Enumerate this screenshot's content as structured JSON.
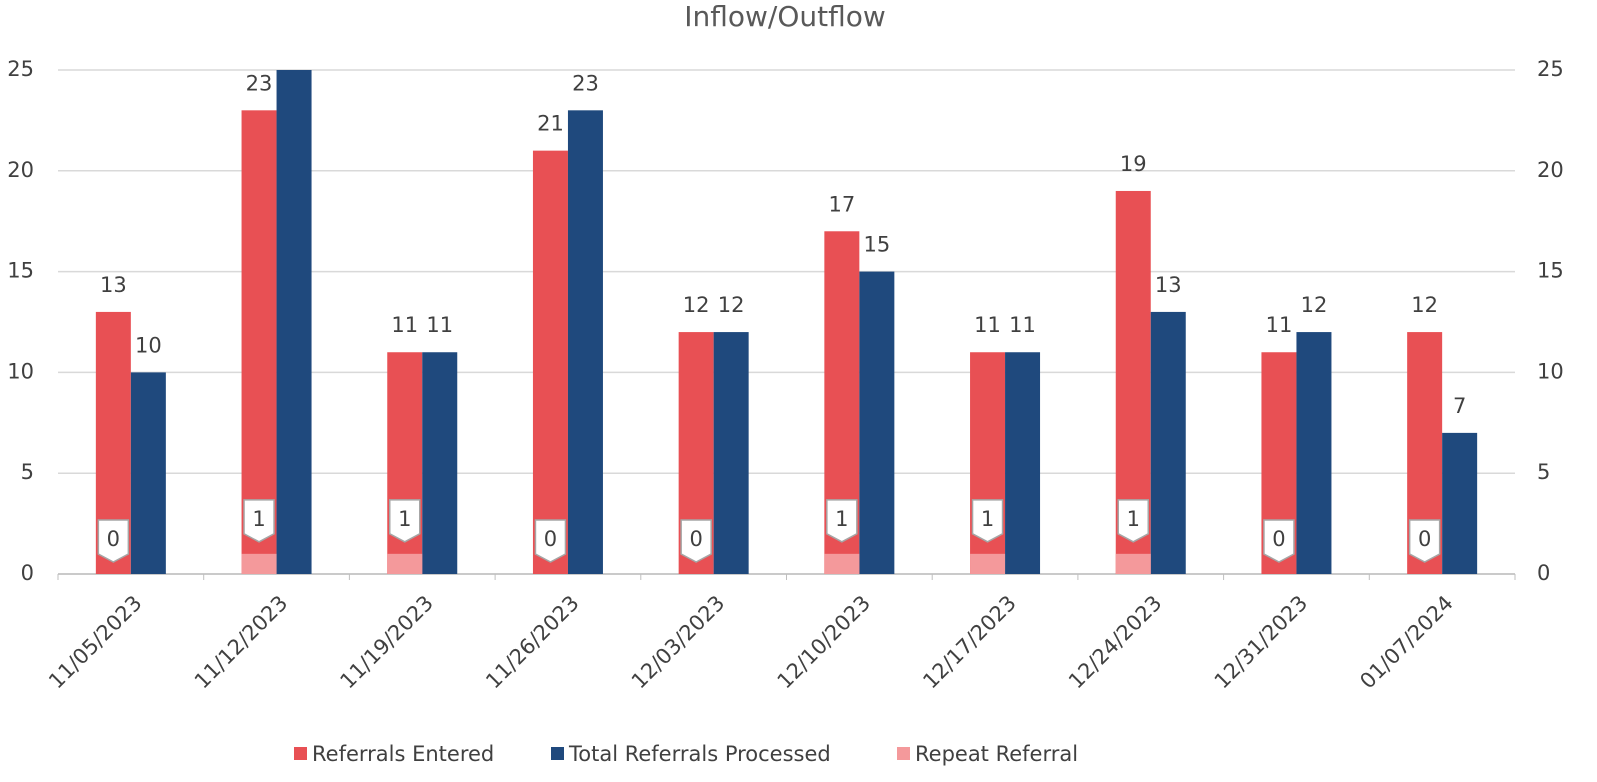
{
  "chart_data": {
    "type": "bar",
    "title": "Inflow/Outflow",
    "categories": [
      "11/05/2023",
      "11/12/2023",
      "11/19/2023",
      "11/26/2023",
      "12/03/2023",
      "12/10/2023",
      "12/17/2023",
      "12/24/2023",
      "12/31/2023",
      "01/07/2024"
    ],
    "series": [
      {
        "name": "Referrals Entered",
        "color": "#e85054",
        "values": [
          13,
          23,
          11,
          21,
          12,
          17,
          11,
          19,
          11,
          12
        ]
      },
      {
        "name": "Total Referrals Processed",
        "color": "#1f497d",
        "values": [
          10,
          25,
          11,
          23,
          12,
          15,
          11,
          13,
          12,
          7
        ],
        "value_labels": [
          "10",
          null,
          "11",
          "23",
          "12",
          "15",
          "11",
          "13",
          "12",
          "7"
        ]
      },
      {
        "name": "Repeat Referral",
        "color": "#f4999b",
        "values": [
          0,
          1,
          1,
          0,
          0,
          1,
          1,
          1,
          0,
          0
        ]
      }
    ],
    "ylim": [
      0,
      25
    ],
    "yticks": [
      0,
      5,
      10,
      15,
      20,
      25
    ],
    "y2lim": [
      0,
      25
    ],
    "y2ticks": [
      0,
      5,
      10,
      15,
      20,
      25
    ],
    "grid": true,
    "legend": "bottom"
  }
}
